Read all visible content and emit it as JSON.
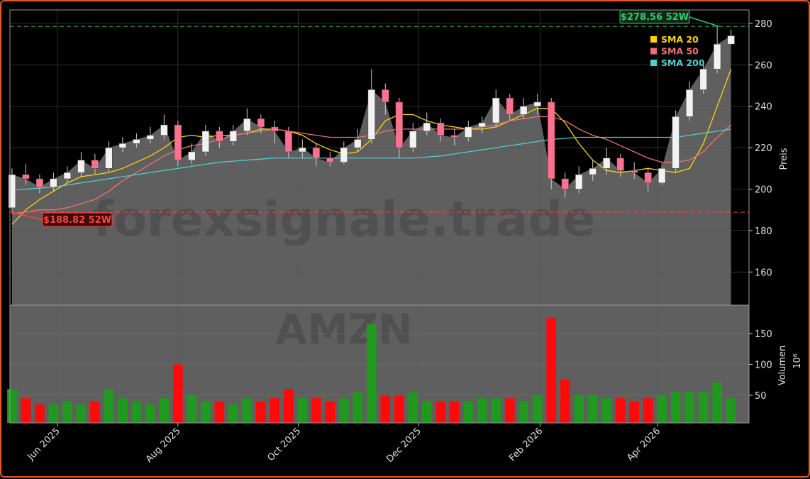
{
  "chart_data": [
    {
      "type": "candlestick",
      "watermark": "forexsignale.trade",
      "ylabel": "Preis",
      "xlim": [
        -0.15,
        53.3
      ],
      "ylim": [
        144,
        286.5
      ],
      "yticks": [
        160,
        180,
        200,
        220,
        240,
        260,
        280
      ],
      "grid": true,
      "up_color": "#f2f2f2",
      "down_color": "#ff6f8e",
      "area_color": "#5f5f5f",
      "open": [
        191,
        207,
        205,
        201,
        205,
        208,
        214,
        210,
        220,
        222,
        224,
        226,
        231,
        214,
        218,
        228,
        223,
        228,
        234,
        230,
        228,
        218,
        220,
        215,
        213,
        220,
        224,
        248,
        242,
        220,
        228,
        232,
        226,
        225,
        230,
        232,
        244,
        236,
        240,
        242,
        205,
        200,
        207,
        210,
        215,
        209,
        208,
        203,
        210,
        235,
        248,
        258,
        270
      ],
      "high": [
        210,
        212,
        207,
        208,
        211,
        218,
        217,
        223,
        225,
        227,
        230,
        236,
        233,
        222,
        231,
        230,
        231,
        239,
        236,
        233,
        230,
        224,
        222,
        218,
        223,
        229,
        258,
        251,
        244,
        232,
        237,
        234,
        229,
        233,
        235,
        248,
        246,
        244,
        246,
        244,
        208,
        211,
        214,
        220,
        217,
        213,
        210,
        213,
        238,
        252,
        262,
        278.56,
        277
      ],
      "low": [
        188.82,
        202,
        198,
        199,
        203,
        206,
        207,
        208,
        218,
        220,
        222,
        224,
        211,
        212,
        216,
        220,
        221,
        226,
        227,
        222,
        215,
        215,
        211,
        211,
        212,
        218,
        222,
        236,
        215,
        218,
        226,
        223,
        221,
        223,
        227,
        230,
        233,
        234,
        236,
        200,
        196,
        198,
        204,
        207,
        206,
        205,
        199,
        202,
        208,
        233,
        246,
        256,
        270
      ],
      "close": [
        207,
        205,
        201,
        205,
        208,
        214,
        210,
        220,
        222,
        224,
        226,
        231,
        214,
        218,
        228,
        223,
        228,
        234,
        230,
        228,
        218,
        220,
        215,
        213,
        220,
        224,
        248,
        242,
        220,
        228,
        232,
        226,
        225,
        230,
        232,
        244,
        236,
        240,
        242,
        205,
        200,
        207,
        210,
        215,
        209,
        208,
        203,
        210,
        235,
        248,
        258,
        270,
        274
      ],
      "legend": "upper right",
      "series": [
        {
          "name": "SMA 20",
          "color": "#ffd400",
          "values": [
            183,
            190,
            195,
            199,
            203,
            206,
            207,
            208,
            210,
            213,
            216,
            220,
            225,
            226,
            225,
            226,
            226,
            227,
            229,
            229,
            228,
            226,
            222,
            219,
            217,
            218,
            224,
            233,
            236,
            236,
            233,
            231,
            230,
            229,
            229,
            230,
            233,
            236,
            239,
            239,
            232,
            222,
            214,
            209,
            208,
            209,
            210,
            209,
            208,
            210,
            222,
            240,
            258
          ]
        },
        {
          "name": "SMA 50",
          "color": "#f07070",
          "values": [
            188,
            189,
            190,
            190,
            191,
            193,
            195,
            199,
            204,
            208,
            212,
            216,
            219,
            221,
            222,
            224,
            226,
            227,
            228,
            229,
            228,
            227,
            226,
            225,
            225,
            225,
            226,
            228,
            229,
            229,
            229,
            229,
            229,
            229,
            230,
            231,
            233,
            234,
            235,
            235,
            233,
            229,
            226,
            224,
            221,
            218,
            215,
            213,
            213,
            214,
            218,
            225,
            231
          ]
        },
        {
          "name": "SMA 200",
          "color": "#4fcfcf",
          "values": [
            199.5,
            200,
            200.5,
            201,
            202,
            203,
            204,
            205,
            206,
            207,
            208,
            209,
            210,
            211,
            212,
            213,
            213.5,
            214,
            214.5,
            215,
            215,
            215,
            215,
            215,
            215,
            215,
            215,
            215,
            215,
            215,
            215.5,
            216,
            217,
            218,
            219,
            220,
            221,
            222,
            223,
            224,
            224.5,
            225,
            225,
            225,
            225,
            225,
            225,
            225,
            225,
            226,
            227,
            228,
            229
          ]
        }
      ],
      "annotations": [
        {
          "value": 278.56,
          "label": "$278.56 52W",
          "color": "#2ecc71"
        },
        {
          "value": 188.82,
          "label": "$188.82 52W",
          "color": "#ff4040"
        }
      ]
    },
    {
      "type": "bar",
      "watermark": "AMZN",
      "ylabel": "Volumen",
      "offset_label": "10⁶",
      "ylim": [
        5,
        196
      ],
      "yticks": [
        50,
        100,
        150
      ],
      "xticks": [
        {
          "value": 3.28,
          "label": "Jun 2025"
        },
        {
          "value": 12.0,
          "label": "Aug 2025"
        },
        {
          "value": 20.7,
          "label": "Oct 2025"
        },
        {
          "value": 29.4,
          "label": "Dec 2025"
        },
        {
          "value": 38.2,
          "label": "Feb 2026"
        },
        {
          "value": 46.7,
          "label": "Apr 2026"
        }
      ],
      "up_color": "#1f9a1f",
      "down_color": "#ff0a0a",
      "values": [
        60,
        45,
        35,
        35,
        40,
        35,
        40,
        60,
        45,
        40,
        35,
        45,
        100,
        50,
        40,
        40,
        35,
        45,
        40,
        45,
        60,
        45,
        45,
        40,
        45,
        55,
        165,
        50,
        50,
        55,
        40,
        40,
        40,
        40,
        45,
        45,
        45,
        40,
        50,
        175,
        75,
        50,
        50,
        45,
        45,
        40,
        45,
        50,
        55,
        55,
        55,
        70,
        45
      ]
    }
  ]
}
